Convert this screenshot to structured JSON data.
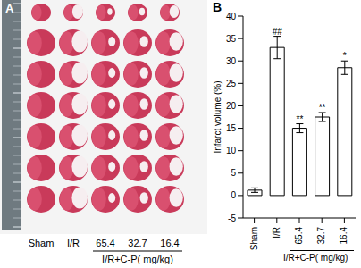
{
  "panel_a": {
    "label": "A",
    "columns": [
      "Sham",
      "I/R",
      "65.4",
      "32.7",
      "16.4"
    ],
    "group_label": "I/R+C-P( mg/kg)"
  },
  "chart_data": {
    "type": "bar",
    "title": "B",
    "categories": [
      "Sham",
      "I/R",
      "65.4",
      "32.7",
      "16.4"
    ],
    "values": [
      1.2,
      33,
      15,
      17.5,
      28.5
    ],
    "errors": [
      0.5,
      2.5,
      1,
      1,
      1.5
    ],
    "significance": [
      null,
      "##",
      "**",
      "**",
      "*"
    ],
    "ylabel": "Infarct volume (%)",
    "xlabel": "I/R+C-P( mg/kg)",
    "ylim": [
      -5,
      40
    ],
    "yticks": [
      -5,
      0,
      5,
      10,
      15,
      20,
      25,
      30,
      35,
      40
    ],
    "color": "#ffffff",
    "grid": false
  }
}
